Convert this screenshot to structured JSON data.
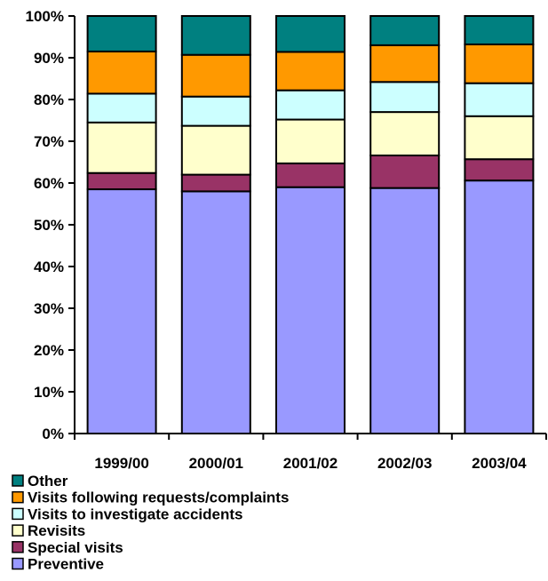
{
  "chart_data": {
    "type": "bar",
    "stacked": true,
    "percent_stacked": true,
    "categories": [
      "1999/00",
      "2000/01",
      "2001/02",
      "2002/03",
      "2003/04"
    ],
    "series": [
      {
        "name": "Preventive",
        "color": "#9999ff",
        "values": [
          58.5,
          58.0,
          59.0,
          58.8,
          60.6
        ]
      },
      {
        "name": "Special visits",
        "color": "#993366",
        "values": [
          3.9,
          4.0,
          5.7,
          7.8,
          5.1
        ]
      },
      {
        "name": "Revisits",
        "color": "#ffffcc",
        "values": [
          12.1,
          11.7,
          10.5,
          10.4,
          10.3
        ]
      },
      {
        "name": "Visits to investigate accidents",
        "color": "#ccffff",
        "values": [
          6.9,
          7.0,
          7.0,
          7.2,
          7.9
        ]
      },
      {
        "name": "Visits following requests/complaints",
        "color": "#ff9900",
        "values": [
          10.1,
          10.0,
          9.2,
          8.8,
          9.3
        ]
      },
      {
        "name": "Other",
        "color": "#008080",
        "values": [
          8.5,
          9.3,
          8.6,
          7.0,
          6.8
        ]
      }
    ],
    "y_ticks": [
      "0%",
      "10%",
      "20%",
      "30%",
      "40%",
      "50%",
      "60%",
      "70%",
      "80%",
      "90%",
      "100%"
    ],
    "ylim": [
      0,
      100
    ],
    "grid": false,
    "legend_position": "bottom-left",
    "legend_order": [
      "Other",
      "Visits following requests/complaints",
      "Visits to investigate accidents",
      "Revisits",
      "Special visits",
      "Preventive"
    ]
  }
}
